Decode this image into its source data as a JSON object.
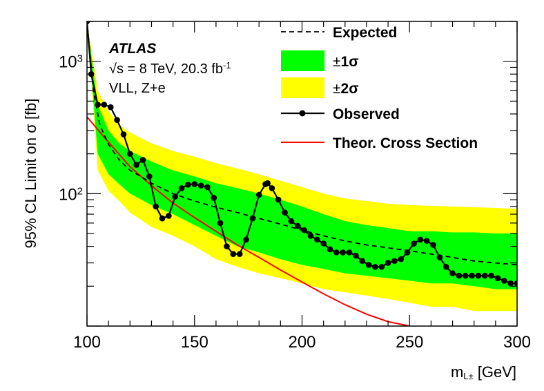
{
  "chart_data": {
    "type": "line",
    "title": "",
    "xlabel_main": "m",
    "xlabel_sub": "L±",
    "xlabel_unit": " [GeV]",
    "ylabel": "95% CL Limit on σ [fb]",
    "xlim": [
      100,
      300
    ],
    "ylim": [
      10,
      2000
    ],
    "yscale": "log",
    "x_ticks": [
      100,
      150,
      200,
      250,
      300
    ],
    "x_tick_labels": [
      "100",
      "150",
      "200",
      "250",
      "300"
    ],
    "y_major_ticks": [
      {
        "value": 1000,
        "base": "10",
        "exp": "3"
      },
      {
        "value": 100,
        "base": "10",
        "exp": "2"
      }
    ],
    "annotations": {
      "experiment": "ATLAS",
      "energy_prefix": "√s = 8 TeV, 20.3 fb",
      "energy_sup": "-1",
      "channel": "VLL, Z+e"
    },
    "legend": {
      "expected": "Expected",
      "one_sigma_pm": "±",
      "one_sigma_num": "1σ",
      "two_sigma_pm": "±",
      "two_sigma_num": "2σ",
      "observed": "Observed",
      "theory": "Theor. Cross Section"
    },
    "colors": {
      "one_sigma": "#00ff00",
      "two_sigma": "#ffff00",
      "observed": "#000000",
      "expected": "#000000",
      "theory": "#ff0000"
    },
    "observed": {
      "x": [
        100,
        102,
        105,
        108,
        111,
        114,
        117,
        120,
        123,
        126,
        129,
        132,
        135,
        138,
        141,
        144,
        147,
        150,
        153,
        156,
        159,
        162,
        165,
        168,
        171,
        174,
        177,
        180,
        183,
        184,
        186,
        189,
        192,
        195,
        198,
        201,
        204,
        207,
        210,
        213,
        216,
        219,
        222,
        225,
        228,
        231,
        234,
        237,
        240,
        243,
        246,
        249,
        252,
        255,
        258,
        261,
        264,
        267,
        270,
        273,
        276,
        279,
        282,
        285,
        288,
        291,
        294,
        297,
        300
      ],
      "y": [
        2000,
        800,
        470,
        470,
        450,
        360,
        280,
        200,
        165,
        180,
        135,
        80,
        65,
        68,
        95,
        110,
        117,
        118,
        115,
        112,
        93,
        60,
        40,
        35,
        35,
        45,
        65,
        98,
        118,
        120,
        110,
        90,
        72,
        62,
        57,
        53,
        48,
        45,
        42,
        38,
        36,
        36,
        36,
        34,
        31,
        29,
        28,
        28,
        30,
        31,
        32,
        36,
        42,
        45,
        44,
        41,
        33,
        28,
        25,
        24,
        24,
        24,
        24,
        24,
        24,
        23,
        22,
        21,
        21
      ]
    },
    "expected": {
      "x": [
        100,
        103,
        106,
        110,
        115,
        120,
        125,
        130,
        140,
        150,
        160,
        170,
        180,
        190,
        200,
        210,
        220,
        230,
        240,
        250,
        260,
        270,
        280,
        290,
        300
      ],
      "y": [
        2000,
        600,
        330,
        235,
        180,
        150,
        135,
        120,
        100,
        88,
        79,
        72,
        65,
        59,
        53,
        48,
        44,
        41,
        39,
        37,
        35,
        33,
        31,
        30,
        29
      ]
    },
    "band_1sigma": {
      "x": [
        100,
        105,
        110,
        115,
        120,
        130,
        140,
        150,
        160,
        170,
        180,
        190,
        200,
        210,
        220,
        230,
        240,
        250,
        260,
        270,
        280,
        290,
        300
      ],
      "upper": [
        2000,
        470,
        300,
        240,
        210,
        175,
        150,
        135,
        120,
        110,
        100,
        90,
        80,
        70,
        62,
        58,
        55,
        52,
        52,
        51,
        51,
        50,
        50
      ],
      "lower": [
        2000,
        200,
        140,
        118,
        100,
        82,
        70,
        58,
        48,
        40,
        36,
        32,
        29,
        27,
        25,
        24,
        23,
        22,
        21,
        21,
        20,
        19,
        19
      ]
    },
    "band_2sigma": {
      "x": [
        100,
        105,
        110,
        115,
        120,
        130,
        140,
        150,
        160,
        170,
        180,
        190,
        200,
        210,
        220,
        230,
        240,
        250,
        260,
        270,
        280,
        290,
        300
      ],
      "upper": [
        2000,
        600,
        420,
        330,
        290,
        240,
        210,
        190,
        170,
        155,
        140,
        125,
        112,
        100,
        92,
        88,
        84,
        82,
        81,
        80,
        79,
        78,
        77
      ],
      "lower": [
        2000,
        150,
        105,
        88,
        72,
        56,
        48,
        40,
        32,
        28,
        25,
        23,
        21,
        19,
        18,
        17,
        16,
        15,
        14,
        14,
        13,
        13,
        13
      ]
    },
    "theory": {
      "x": [
        100,
        110,
        120,
        130,
        140,
        150,
        160,
        170,
        180,
        190,
        200,
        210,
        220,
        230,
        240,
        250,
        253
      ],
      "y": [
        380,
        245,
        160,
        115,
        85,
        66,
        52,
        41,
        33,
        26.5,
        21.5,
        17.5,
        14.5,
        12.3,
        10.8,
        10.0,
        9.5
      ]
    }
  }
}
